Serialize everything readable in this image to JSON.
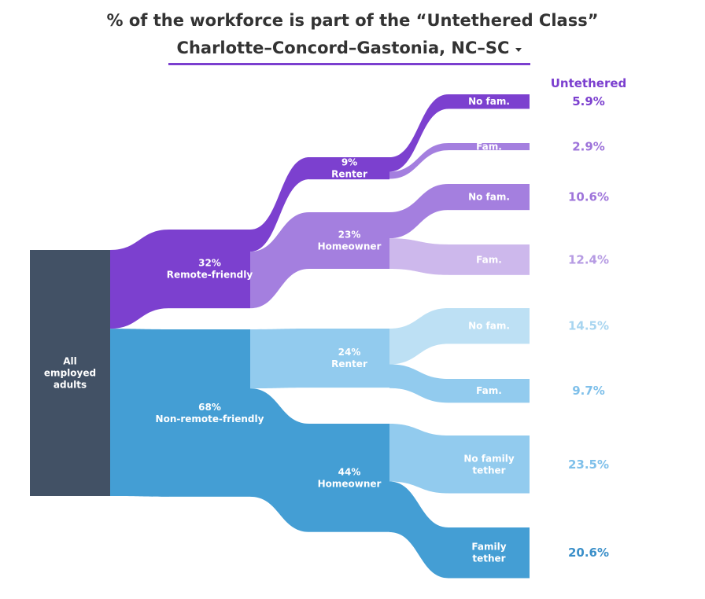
{
  "title": "% of the workforce is part of the “Untethered Class”",
  "region": {
    "selected": "Charlotte–Concord–Gastonia, NC–SC"
  },
  "chart_data": {
    "type": "sankey",
    "right_header": "Untethered",
    "nodes": [
      {
        "id": "all",
        "lines": [
          "All",
          "employed",
          "adults"
        ],
        "color": "#425165"
      },
      {
        "id": "remote",
        "lines": [
          "32%",
          "Remote-friendly"
        ],
        "value": 32,
        "color": "#7c40cf"
      },
      {
        "id": "nonremote",
        "lines": [
          "68%",
          "Non-remote-friendly"
        ],
        "value": 68,
        "color": "#449ed4"
      },
      {
        "id": "r_renter",
        "lines": [
          "9%",
          "Renter"
        ],
        "value": 9,
        "color": "#7c40cf"
      },
      {
        "id": "r_owner",
        "lines": [
          "23%",
          "Homeowner"
        ],
        "value": 23,
        "color": "#a47fdf"
      },
      {
        "id": "n_renter",
        "lines": [
          "24%",
          "Renter"
        ],
        "value": 24,
        "color": "#92cbee"
      },
      {
        "id": "n_owner",
        "lines": [
          "44%",
          "Homeowner"
        ],
        "value": 44,
        "color": "#449ed4"
      },
      {
        "id": "rr_nofam",
        "lines": [
          "No fam."
        ],
        "color": "#7c40cf",
        "share_label": "5.9%",
        "share": 5.9,
        "label_color": "#7c40cf"
      },
      {
        "id": "rr_fam",
        "lines": [
          "Fam."
        ],
        "color": "#a47fdf",
        "share_label": "2.9%",
        "share": 2.9,
        "label_color": "#9e74da"
      },
      {
        "id": "ro_nofam",
        "lines": [
          "No fam."
        ],
        "color": "#a47fdf",
        "share_label": "10.6%",
        "share": 10.6,
        "label_color": "#9e74da"
      },
      {
        "id": "ro_fam",
        "lines": [
          "Fam."
        ],
        "color": "#cdb8ec",
        "share_label": "12.4%",
        "share": 12.4,
        "label_color": "#b69be3"
      },
      {
        "id": "nr_nofam",
        "lines": [
          "No fam."
        ],
        "color": "#bde0f4",
        "share_label": "14.5%",
        "share": 14.5,
        "label_color": "#a8d5f0"
      },
      {
        "id": "nr_fam",
        "lines": [
          "Fam."
        ],
        "color": "#92cbee",
        "share_label": "9.7%",
        "share": 9.7,
        "label_color": "#7fc0ea"
      },
      {
        "id": "no_nofam",
        "lines": [
          "No family",
          "tether"
        ],
        "color": "#92cbee",
        "share_label": "23.5%",
        "share": 23.5,
        "label_color": "#7fc0ea"
      },
      {
        "id": "no_fam",
        "lines": [
          "Family",
          "tether"
        ],
        "color": "#449ed4",
        "share_label": "20.6%",
        "share": 20.6,
        "label_color": "#3a8fc9"
      }
    ],
    "links": [
      {
        "source": "all",
        "target": "remote",
        "value": 32
      },
      {
        "source": "all",
        "target": "nonremote",
        "value": 68
      },
      {
        "source": "remote",
        "target": "r_renter",
        "value": 9
      },
      {
        "source": "remote",
        "target": "r_owner",
        "value": 23
      },
      {
        "source": "nonremote",
        "target": "n_renter",
        "value": 24
      },
      {
        "source": "nonremote",
        "target": "n_owner",
        "value": 44
      },
      {
        "source": "r_renter",
        "target": "rr_nofam",
        "value": 5.9
      },
      {
        "source": "r_renter",
        "target": "rr_fam",
        "value": 2.9
      },
      {
        "source": "r_owner",
        "target": "ro_nofam",
        "value": 10.6
      },
      {
        "source": "r_owner",
        "target": "ro_fam",
        "value": 12.4
      },
      {
        "source": "n_renter",
        "target": "nr_nofam",
        "value": 14.5
      },
      {
        "source": "n_renter",
        "target": "nr_fam",
        "value": 9.7
      },
      {
        "source": "n_owner",
        "target": "no_nofam",
        "value": 23.5
      },
      {
        "source": "n_owner",
        "target": "no_fam",
        "value": 20.6
      }
    ]
  }
}
